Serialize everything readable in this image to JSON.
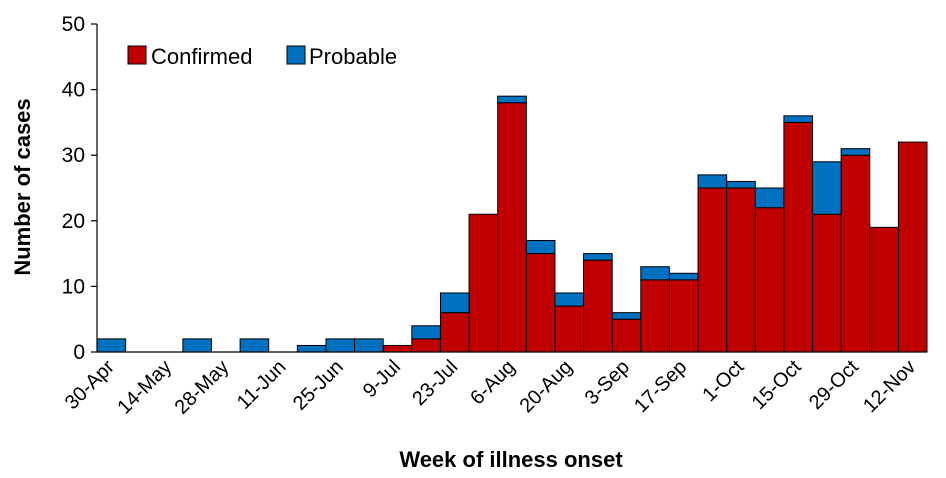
{
  "chart_data": {
    "type": "bar",
    "stacked": true,
    "xlabel": "Week of illness onset",
    "ylabel": "Number of cases",
    "ylim": [
      0,
      50
    ],
    "yticks": [
      0,
      10,
      20,
      30,
      40,
      50
    ],
    "grid": false,
    "legend_position": "top-left",
    "categories": [
      "30-Apr",
      "7-May",
      "14-May",
      "21-May",
      "28-May",
      "4-Jun",
      "11-Jun",
      "18-Jun",
      "25-Jun",
      "2-Jul",
      "9-Jul",
      "16-Jul",
      "23-Jul",
      "30-Jul",
      "6-Aug",
      "13-Aug",
      "20-Aug",
      "27-Aug",
      "3-Sep",
      "10-Sep",
      "17-Sep",
      "24-Sep",
      "1-Oct",
      "8-Oct",
      "15-Oct",
      "22-Oct",
      "29-Oct",
      "5-Nov",
      "12-Nov"
    ],
    "tick_labels": [
      "30-Apr",
      "14-May",
      "28-May",
      "11-Jun",
      "25-Jun",
      "9-Jul",
      "23-Jul",
      "6-Aug",
      "20-Aug",
      "3-Sep",
      "17-Sep",
      "1-Oct",
      "15-Oct",
      "29-Oct",
      "12-Nov"
    ],
    "series": [
      {
        "name": "Confirmed",
        "color": "#c00000",
        "values": [
          0,
          0,
          0,
          0,
          0,
          0,
          0,
          0,
          0,
          0,
          1,
          2,
          6,
          21,
          38,
          15,
          7,
          14,
          5,
          11,
          11,
          25,
          25,
          22,
          35,
          21,
          30,
          19,
          32
        ]
      },
      {
        "name": "Probable",
        "color": "#0070c0",
        "values": [
          2,
          0,
          0,
          2,
          0,
          2,
          0,
          1,
          2,
          2,
          0,
          2,
          3,
          0,
          1,
          2,
          2,
          1,
          1,
          2,
          1,
          2,
          1,
          3,
          1,
          8,
          1,
          0,
          0
        ]
      }
    ]
  }
}
